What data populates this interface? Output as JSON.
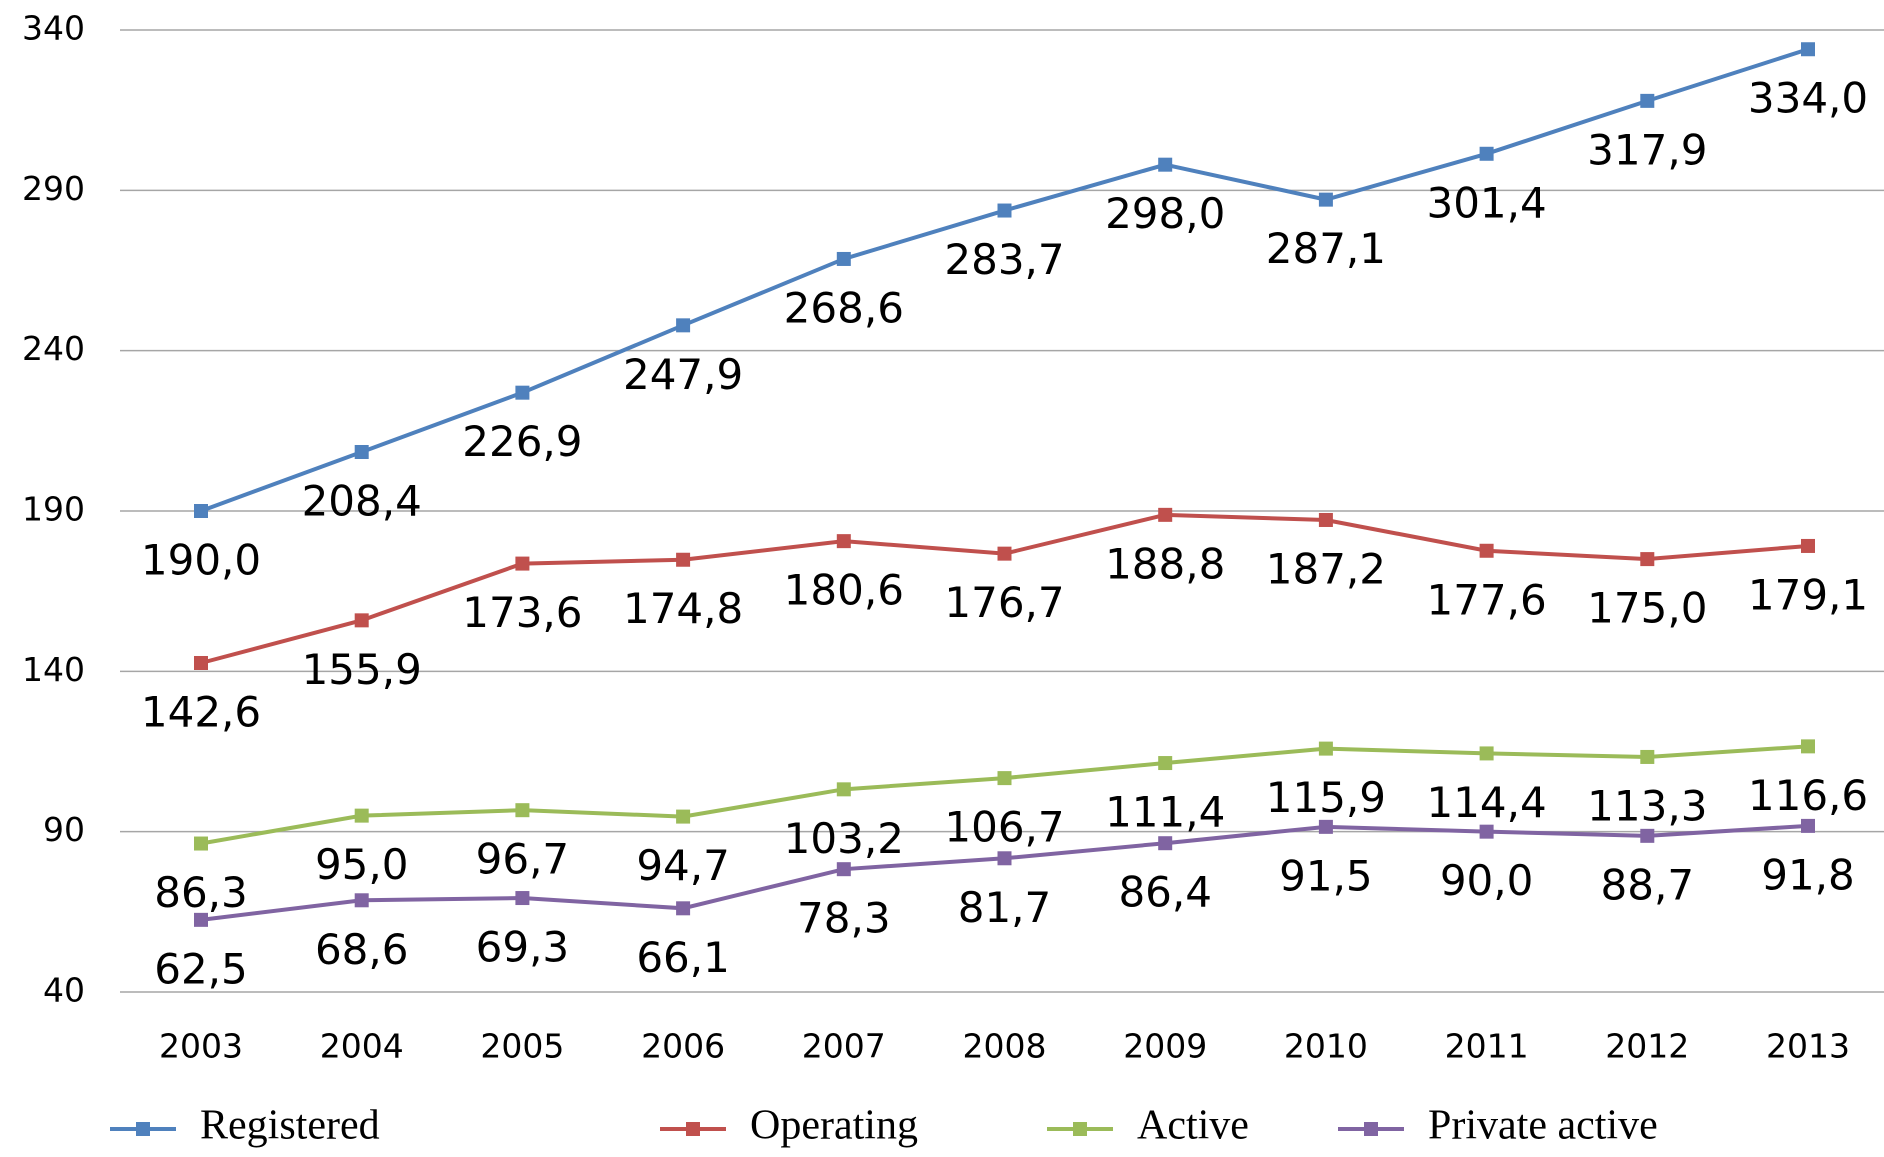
{
  "chart_data": {
    "type": "line",
    "categories": [
      "2003",
      "2004",
      "2005",
      "2006",
      "2007",
      "2008",
      "2009",
      "2010",
      "2011",
      "2012",
      "2013"
    ],
    "ylim": [
      40,
      340
    ],
    "yticks": [
      40,
      90,
      140,
      190,
      240,
      290,
      340
    ],
    "grid": true,
    "legend": "bottom",
    "series": [
      {
        "name": "Registered",
        "color": "#4f81bd",
        "values": [
          190.0,
          208.4,
          226.9,
          247.9,
          268.6,
          283.7,
          298.0,
          287.1,
          301.4,
          317.9,
          334.0
        ],
        "value_labels": [
          "190,0",
          "208,4",
          "226,9",
          "247,9",
          "268,6",
          "283,7",
          "298,0",
          "287,1",
          "301,4",
          "317,9",
          "334,0"
        ]
      },
      {
        "name": "Operating",
        "color": "#c0504d",
        "values": [
          142.6,
          155.9,
          173.6,
          174.8,
          180.6,
          176.7,
          188.8,
          187.2,
          177.6,
          175.0,
          179.1
        ],
        "value_labels": [
          "142,6",
          "155,9",
          "173,6",
          "174,8",
          "180,6",
          "176,7",
          "188,8",
          "187,2",
          "177,6",
          "175,0",
          "179,1"
        ]
      },
      {
        "name": "Active",
        "color": "#9bbb59",
        "values": [
          86.3,
          95.0,
          96.7,
          94.7,
          103.2,
          106.7,
          111.4,
          115.9,
          114.4,
          113.3,
          116.6
        ],
        "value_labels": [
          "86,3",
          "95,0",
          "96,7",
          "94,7",
          "103,2",
          "106,7",
          "111,4",
          "115,9",
          "114,4",
          "113,3",
          "116,6"
        ]
      },
      {
        "name": "Private active",
        "color": "#8064a2",
        "values": [
          62.5,
          68.6,
          69.3,
          66.1,
          78.3,
          81.7,
          86.4,
          91.5,
          90.0,
          88.7,
          91.8
        ],
        "value_labels": [
          "62,5",
          "68,6",
          "69,3",
          "66,1",
          "78,3",
          "81,7",
          "86,4",
          "91,5",
          "90,0",
          "88,7",
          "91,8"
        ]
      }
    ]
  }
}
